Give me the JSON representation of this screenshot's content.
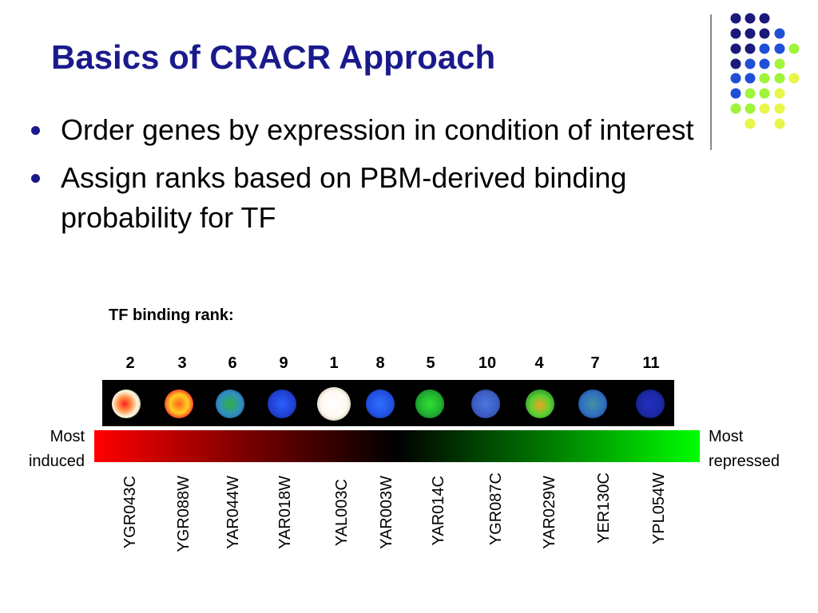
{
  "slide": {
    "title": "Basics of CRACR Approach",
    "bullets": [
      "Order genes by expression in condition of interest",
      "Assign ranks based on PBM-derived binding probability for TF"
    ]
  },
  "figure": {
    "rank_label": "TF binding rank:",
    "ranks": [
      "2",
      "3",
      "6",
      "9",
      "1",
      "8",
      "5",
      "10",
      "4",
      "7",
      "11"
    ],
    "genes": [
      "YGR043C",
      "YGR088W",
      "YAR044W",
      "YAR018W",
      "YAL003C",
      "YAR003W",
      "YAR014C",
      "YGR087C",
      "YAR029W",
      "YER130C",
      "YPL054W"
    ],
    "left_label_line1": "Most",
    "left_label_line2": "induced",
    "right_label_line1": "Most",
    "right_label_line2": "repressed",
    "gradient_colors": [
      "#ff0000",
      "#000000",
      "#00ff00"
    ]
  },
  "decor": {
    "dot_colors": {
      "navy": "#1a1a7a",
      "blue": "#1f4fd6",
      "lime": "#9ef53a",
      "yellow": "#e8f54a"
    }
  }
}
